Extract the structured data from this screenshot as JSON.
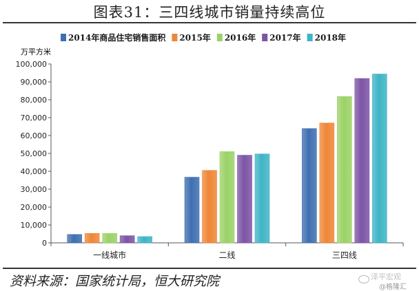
{
  "header": {
    "title": "图表31：三四线城市销量持续高位"
  },
  "footer": {
    "source": "资料来源：国家统计局，恒大研究院"
  },
  "watermark": {
    "line1": "泽平宏观",
    "line2": "@格隆汇"
  },
  "chart_data": {
    "type": "bar",
    "title": "",
    "ylabel": "万平方米",
    "xlabel": "",
    "ylim": [
      0,
      100000
    ],
    "yticks": [
      0,
      10000,
      20000,
      30000,
      40000,
      50000,
      60000,
      70000,
      80000,
      90000,
      100000
    ],
    "ytick_labels": [
      "0",
      "10,000",
      "20,000",
      "30,000",
      "40,000",
      "50,000",
      "60,000",
      "70,000",
      "80,000",
      "90,000",
      "100,000"
    ],
    "categories": [
      "一线城市",
      "二线",
      "三四线"
    ],
    "legend_position": "top",
    "grid": false,
    "series": [
      {
        "name": "2014年商品住宅销售面积",
        "color": "#3f6fb0",
        "values": [
          4700,
          36700,
          63900
        ]
      },
      {
        "name": "2015年",
        "color": "#ef8636",
        "values": [
          5300,
          40500,
          67000
        ]
      },
      {
        "name": "2016年",
        "color": "#9bd267",
        "values": [
          5300,
          51000,
          81800
        ]
      },
      {
        "name": "2017年",
        "color": "#7d54a6",
        "values": [
          4000,
          49000,
          91900
        ]
      },
      {
        "name": "2018年",
        "color": "#3fb4c6",
        "values": [
          3500,
          49700,
          94400
        ]
      }
    ]
  }
}
